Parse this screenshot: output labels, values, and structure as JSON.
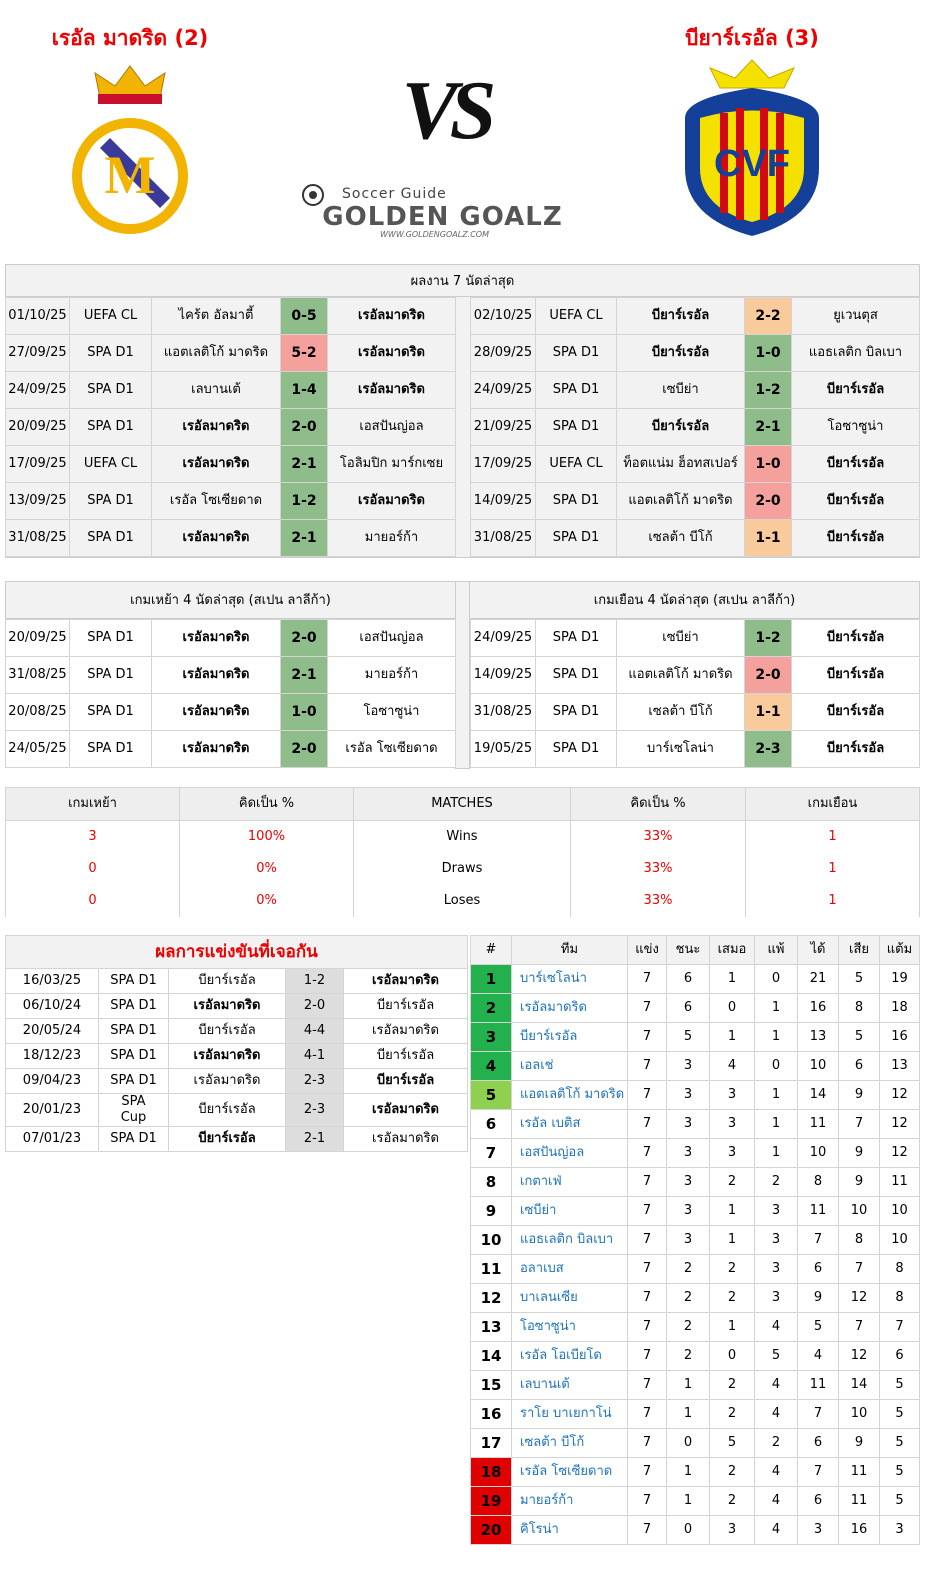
{
  "header": {
    "home_team": "เรอัล มาดริด (2)",
    "away_team": "บียาร์เรอัล (3)",
    "vs": "VS",
    "logo_tagline": "Soccer Guide",
    "logo_name": "GOLDEN GOALZ",
    "logo_url": "WWW.GOLDENGOALZ.COM"
  },
  "last7": {
    "title": "ผลงาน 7 นัดล่าสุด",
    "home": [
      {
        "date": "01/10/25",
        "comp": "UEFA CL",
        "home": "ไคร้ต อัลมาตี้",
        "score": "0-5",
        "away": "เรอัลมาดริด",
        "bold": "away",
        "score_color": "#8fbc8b"
      },
      {
        "date": "27/09/25",
        "comp": "SPA D1",
        "home": "แอตเลติโก้ มาดริด",
        "score": "5-2",
        "away": "เรอัลมาดริด",
        "bold": "away",
        "score_color": "#f4a09c"
      },
      {
        "date": "24/09/25",
        "comp": "SPA D1",
        "home": "เลบานเต้",
        "score": "1-4",
        "away": "เรอัลมาดริด",
        "bold": "away",
        "score_color": "#8fbc8b"
      },
      {
        "date": "20/09/25",
        "comp": "SPA D1",
        "home": "เรอัลมาดริด",
        "score": "2-0",
        "away": "เอสปันญ่อล",
        "bold": "home",
        "score_color": "#8fbc8b"
      },
      {
        "date": "17/09/25",
        "comp": "UEFA CL",
        "home": "เรอัลมาดริด",
        "score": "2-1",
        "away": "โอลิมปิก มาร์กเซย",
        "bold": "home",
        "score_color": "#8fbc8b"
      },
      {
        "date": "13/09/25",
        "comp": "SPA D1",
        "home": "เรอัล โซเซียดาด",
        "score": "1-2",
        "away": "เรอัลมาดริด",
        "bold": "away",
        "score_color": "#8fbc8b"
      },
      {
        "date": "31/08/25",
        "comp": "SPA D1",
        "home": "เรอัลมาดริด",
        "score": "2-1",
        "away": "มายอร์ก้า",
        "bold": "home",
        "score_color": "#8fbc8b"
      }
    ],
    "away": [
      {
        "date": "02/10/25",
        "comp": "UEFA CL",
        "home": "บียาร์เรอัล",
        "score": "2-2",
        "away": "ยูเวนตุส",
        "bold": "home",
        "score_color": "#f9cb9c"
      },
      {
        "date": "28/09/25",
        "comp": "SPA D1",
        "home": "บียาร์เรอัล",
        "score": "1-0",
        "away": "แอธเลติก บิลเบา",
        "bold": "home",
        "score_color": "#8fbc8b"
      },
      {
        "date": "24/09/25",
        "comp": "SPA D1",
        "home": "เซบีย่า",
        "score": "1-2",
        "away": "บียาร์เรอัล",
        "bold": "away",
        "score_color": "#8fbc8b"
      },
      {
        "date": "21/09/25",
        "comp": "SPA D1",
        "home": "บียาร์เรอัล",
        "score": "2-1",
        "away": "โอซาซูน่า",
        "bold": "home",
        "score_color": "#8fbc8b"
      },
      {
        "date": "17/09/25",
        "comp": "UEFA CL",
        "home": "ท็อตแน่ม ฮ็อทสเปอร์",
        "score": "1-0",
        "away": "บียาร์เรอัล",
        "bold": "away",
        "score_color": "#f4a09c"
      },
      {
        "date": "14/09/25",
        "comp": "SPA D1",
        "home": "แอตเลติโก้ มาดริด",
        "score": "2-0",
        "away": "บียาร์เรอัล",
        "bold": "away",
        "score_color": "#f4a09c"
      },
      {
        "date": "31/08/25",
        "comp": "SPA D1",
        "home": "เซลต้า บีโก้",
        "score": "1-1",
        "away": "บียาร์เรอัล",
        "bold": "away",
        "score_color": "#f9cb9c"
      }
    ]
  },
  "last4": {
    "home_title": "เกมเหย้า 4 นัดล่าสุด (สเปน ลาลีก้า)",
    "away_title": "เกมเยือน 4 นัดล่าสุด (สเปน ลาลีก้า)",
    "home": [
      {
        "date": "20/09/25",
        "comp": "SPA D1",
        "home": "เรอัลมาดริด",
        "score": "2-0",
        "away": "เอสปันญ่อล",
        "bold": "home",
        "score_color": "#8fbc8b"
      },
      {
        "date": "31/08/25",
        "comp": "SPA D1",
        "home": "เรอัลมาดริด",
        "score": "2-1",
        "away": "มายอร์ก้า",
        "bold": "home",
        "score_color": "#8fbc8b"
      },
      {
        "date": "20/08/25",
        "comp": "SPA D1",
        "home": "เรอัลมาดริด",
        "score": "1-0",
        "away": "โอซาซูน่า",
        "bold": "home",
        "score_color": "#8fbc8b"
      },
      {
        "date": "24/05/25",
        "comp": "SPA D1",
        "home": "เรอัลมาดริด",
        "score": "2-0",
        "away": "เรอัล โซเซียดาด",
        "bold": "home",
        "score_color": "#8fbc8b"
      }
    ],
    "away": [
      {
        "date": "24/09/25",
        "comp": "SPA D1",
        "home": "เซบีย่า",
        "score": "1-2",
        "away": "บียาร์เรอัล",
        "bold": "away",
        "score_color": "#8fbc8b"
      },
      {
        "date": "14/09/25",
        "comp": "SPA D1",
        "home": "แอตเลติโก้ มาดริด",
        "score": "2-0",
        "away": "บียาร์เรอัล",
        "bold": "away",
        "score_color": "#f4a09c"
      },
      {
        "date": "31/08/25",
        "comp": "SPA D1",
        "home": "เซลต้า บีโก้",
        "score": "1-1",
        "away": "บียาร์เรอัล",
        "bold": "away",
        "score_color": "#f9cb9c"
      },
      {
        "date": "19/05/25",
        "comp": "SPA D1",
        "home": "บาร์เซโลน่า",
        "score": "2-3",
        "away": "บียาร์เรอัล",
        "bold": "away",
        "score_color": "#8fbc8b"
      }
    ]
  },
  "summary": {
    "headers": [
      "เกมเหย้า",
      "คิดเป็น %",
      "MATCHES",
      "คิดเป็น %",
      "เกมเยือน"
    ],
    "rows": [
      [
        3,
        "100%",
        "Wins",
        "33%",
        1
      ],
      [
        0,
        "0%",
        "Draws",
        "33%",
        1
      ],
      [
        0,
        "0%",
        "Loses",
        "33%",
        1
      ]
    ]
  },
  "h2h": {
    "title": "ผลการแข่งขันที่เจอกัน",
    "rows": [
      {
        "date": "16/03/25",
        "comp": "SPA D1",
        "home": "บียาร์เรอัล",
        "score": "1-2",
        "away": "เรอัลมาดริด",
        "bold": "away"
      },
      {
        "date": "06/10/24",
        "comp": "SPA D1",
        "home": "เรอัลมาดริด",
        "score": "2-0",
        "away": "บียาร์เรอัล",
        "bold": "home"
      },
      {
        "date": "20/05/24",
        "comp": "SPA D1",
        "home": "บียาร์เรอัล",
        "score": "4-4",
        "away": "เรอัลมาดริด"
      },
      {
        "date": "18/12/23",
        "comp": "SPA D1",
        "home": "เรอัลมาดริด",
        "score": "4-1",
        "away": "บียาร์เรอัล",
        "bold": "home"
      },
      {
        "date": "09/04/23",
        "comp": "SPA D1",
        "home": "เรอัลมาดริด",
        "score": "2-3",
        "away": "บียาร์เรอัล",
        "bold": "away"
      },
      {
        "date": "20/01/23",
        "comp": "SPA Cup",
        "home": "บียาร์เรอัล",
        "score": "2-3",
        "away": "เรอัลมาดริด",
        "bold": "away"
      },
      {
        "date": "07/01/23",
        "comp": "SPA D1",
        "home": "บียาร์เรอัล",
        "score": "2-1",
        "away": "เรอัลมาดริด",
        "bold": "home"
      }
    ]
  },
  "standings": {
    "headers": [
      "#",
      "ทีม",
      "แข่ง",
      "ชนะ",
      "เสมอ",
      "แพ้",
      "ได้",
      "เสีย",
      "แต้ม"
    ],
    "rows": [
      {
        "rank": 1,
        "team": "บาร์เซโลน่า",
        "stats": [
          7,
          6,
          1,
          0,
          21,
          5,
          19
        ],
        "rank_color": "#22b14c"
      },
      {
        "rank": 2,
        "team": "เรอัลมาดริด",
        "stats": [
          7,
          6,
          0,
          1,
          16,
          8,
          18
        ],
        "rank_color": "#22b14c"
      },
      {
        "rank": 3,
        "team": "บียาร์เรอัล",
        "stats": [
          7,
          5,
          1,
          1,
          13,
          5,
          16
        ],
        "rank_color": "#22b14c"
      },
      {
        "rank": 4,
        "team": "เอลเช่",
        "stats": [
          7,
          3,
          4,
          0,
          10,
          6,
          13
        ],
        "rank_color": "#22b14c"
      },
      {
        "rank": 5,
        "team": "แอตเลติโก้ มาดริด",
        "stats": [
          7,
          3,
          3,
          1,
          14,
          9,
          12
        ],
        "rank_color": "#8fd14f"
      },
      {
        "rank": 6,
        "team": "เรอัล เบติส",
        "stats": [
          7,
          3,
          3,
          1,
          11,
          7,
          12
        ]
      },
      {
        "rank": 7,
        "team": "เอสปันญ่อล",
        "stats": [
          7,
          3,
          3,
          1,
          10,
          9,
          12
        ]
      },
      {
        "rank": 8,
        "team": "เกตาเฟ่",
        "stats": [
          7,
          3,
          2,
          2,
          8,
          9,
          11
        ]
      },
      {
        "rank": 9,
        "team": "เซบีย่า",
        "stats": [
          7,
          3,
          1,
          3,
          11,
          10,
          10
        ]
      },
      {
        "rank": 10,
        "team": "แอธเลติก บิลเบา",
        "stats": [
          7,
          3,
          1,
          3,
          7,
          8,
          10
        ]
      },
      {
        "rank": 11,
        "team": "อลาเบส",
        "stats": [
          7,
          2,
          2,
          3,
          6,
          7,
          8
        ]
      },
      {
        "rank": 12,
        "team": "บาเลนเซีย",
        "stats": [
          7,
          2,
          2,
          3,
          9,
          12,
          8
        ]
      },
      {
        "rank": 13,
        "team": "โอซาซูน่า",
        "stats": [
          7,
          2,
          1,
          4,
          5,
          7,
          7
        ]
      },
      {
        "rank": 14,
        "team": "เรอัล โอเบียโด",
        "stats": [
          7,
          2,
          0,
          5,
          4,
          12,
          6
        ]
      },
      {
        "rank": 15,
        "team": "เลบานเต้",
        "stats": [
          7,
          1,
          2,
          4,
          11,
          14,
          5
        ]
      },
      {
        "rank": 16,
        "team": "ราโย บาเยกาโน่",
        "stats": [
          7,
          1,
          2,
          4,
          7,
          10,
          5
        ]
      },
      {
        "rank": 17,
        "team": "เซลต้า บีโก้",
        "stats": [
          7,
          0,
          5,
          2,
          6,
          9,
          5
        ]
      },
      {
        "rank": 18,
        "team": "เรอัล โซเซียดาด",
        "stats": [
          7,
          1,
          2,
          4,
          7,
          11,
          5
        ],
        "rank_color": "#e00000"
      },
      {
        "rank": 19,
        "team": "มายอร์ก้า",
        "stats": [
          7,
          1,
          2,
          4,
          6,
          11,
          5
        ],
        "rank_color": "#e00000"
      },
      {
        "rank": 20,
        "team": "คิโรน่า",
        "stats": [
          7,
          0,
          3,
          4,
          3,
          16,
          3
        ],
        "rank_color": "#e00000"
      }
    ]
  }
}
